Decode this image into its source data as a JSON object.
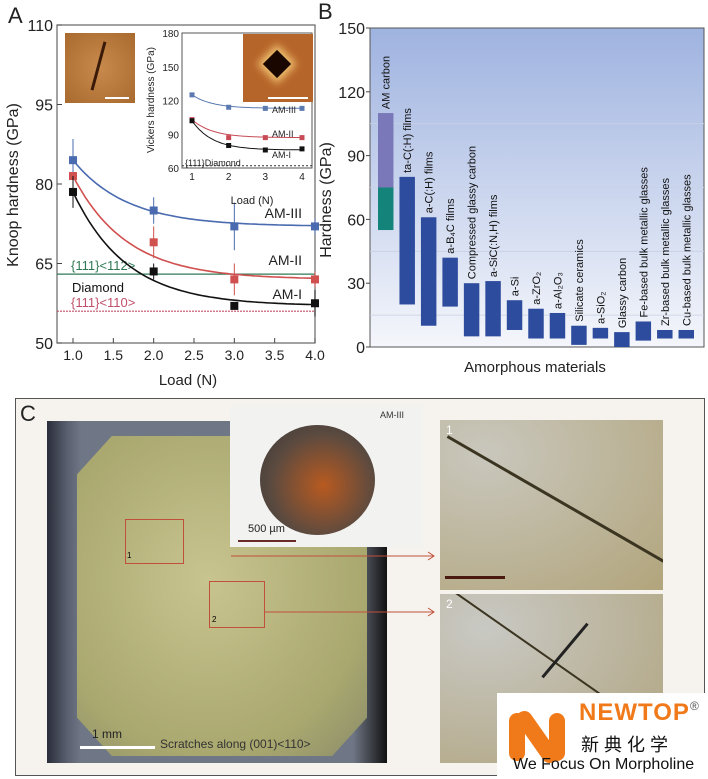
{
  "chart_data": [
    {
      "panel": "A",
      "type": "line",
      "xlabel": "Load (N)",
      "ylabel": "Knoop hardness (GPa)",
      "xlim": [
        0.8,
        4.0
      ],
      "ylim": [
        50,
        110
      ],
      "xticks": [
        "1.0",
        "1.5",
        "2.0",
        "2.5",
        "3.0",
        "3.5",
        "4.0"
      ],
      "yticks": [
        "50",
        "65",
        "80",
        "95",
        "110"
      ],
      "x": [
        1,
        2,
        3,
        4
      ],
      "series": [
        {
          "name": "AM-III",
          "color": "#4a6bb0",
          "values": [
            84.5,
            75,
            72,
            72
          ],
          "errors": [
            4,
            2.5,
            4.5,
            1.5
          ]
        },
        {
          "name": "AM-II",
          "color": "#d0504f",
          "values": [
            81.5,
            69,
            62,
            62
          ],
          "errors": [
            0,
            3,
            3,
            1.5
          ]
        },
        {
          "name": "AM-I",
          "color": "#111111",
          "values": [
            78.5,
            63.5,
            57,
            57.5
          ],
          "errors": [
            3,
            1.5,
            0.5,
            2.5
          ]
        }
      ],
      "reference_lines": [
        {
          "label": "{111}<112>",
          "value": 63,
          "color": "#2f7a55"
        },
        {
          "label": "{111}<110>",
          "value": 56,
          "color": "#c0506a"
        }
      ],
      "annotation": "Diamond",
      "inset": {
        "type": "line",
        "xlabel": "Load (N)",
        "ylabel": "Vickers hardness (GPa)",
        "xlim": [
          0.8,
          4.2
        ],
        "ylim": [
          60,
          180
        ],
        "xticks": [
          "1",
          "2",
          "3",
          "4"
        ],
        "yticks": [
          "60",
          "90",
          "120",
          "150",
          "180"
        ],
        "x": [
          1,
          2,
          3,
          4
        ],
        "series": [
          {
            "name": "AM-III",
            "color": "#5a7ab0",
            "values": [
              125,
              114,
              113,
              113
            ]
          },
          {
            "name": "AM-II",
            "color": "#c84a55",
            "values": [
              103,
              87,
              87,
              87
            ]
          },
          {
            "name": "AM-I",
            "color": "#111111",
            "values": [
              102,
              80,
              76,
              77
            ]
          }
        ],
        "reference_label": "{111}Diamond",
        "reference_value": 62
      }
    },
    {
      "panel": "B",
      "type": "bar",
      "xlabel": "Amorphous materials",
      "ylabel": "Hardness (GPa)",
      "ylim": [
        0,
        150
      ],
      "yticks": [
        "0",
        "30",
        "60",
        "90",
        "120",
        "150"
      ],
      "categories": [
        "AM carbon",
        "ta-C(:H) films",
        "a-C(:H) films",
        "a-B₄C films",
        "Compressed glassy carbon",
        "a-SiC(:N,H) films",
        "a-Si",
        "a-ZrO₂",
        "a-Al₂O₃",
        "Silicate ceramics",
        "a-SiO₂",
        "Glassy carbon",
        "Fe-based bulk metallic glasses",
        "Zr-based bulk metallic glasses",
        "Cu-based bulk metallic glasses"
      ],
      "ranges": [
        [
          55,
          110
        ],
        [
          20,
          80
        ],
        [
          10,
          61
        ],
        [
          19,
          42
        ],
        [
          5,
          30
        ],
        [
          5,
          31
        ],
        [
          8,
          22
        ],
        [
          4,
          18
        ],
        [
          4,
          16
        ],
        [
          1,
          10
        ],
        [
          4,
          9
        ],
        [
          0,
          7
        ],
        [
          3,
          12
        ],
        [
          4,
          8
        ],
        [
          4,
          8
        ]
      ],
      "am_carbon_split": 75,
      "colors": {
        "bar": "#2e4c9e",
        "am_low": "#14847a",
        "am_high": "#7a78b8",
        "bg_top": "#9fb3e0",
        "bg_bottom": "#f4f6fb"
      }
    }
  ],
  "panels": {
    "a": "A",
    "b": "B",
    "c": "C"
  },
  "panel_c": {
    "inset_label": "AM-III",
    "inset_scale": "500 µm",
    "main_scale": "1 mm",
    "caption": "Scratches along (001)<110>",
    "region_1": "1",
    "region_2": "2",
    "zoom_1_label": "1",
    "zoom_2_label": "2"
  },
  "logo": {
    "brand": "NEWTOP",
    "registered": "®",
    "chinese": "新 典 化 学",
    "tagline": "We Focus On Morpholine",
    "color": "#f07a1a"
  }
}
